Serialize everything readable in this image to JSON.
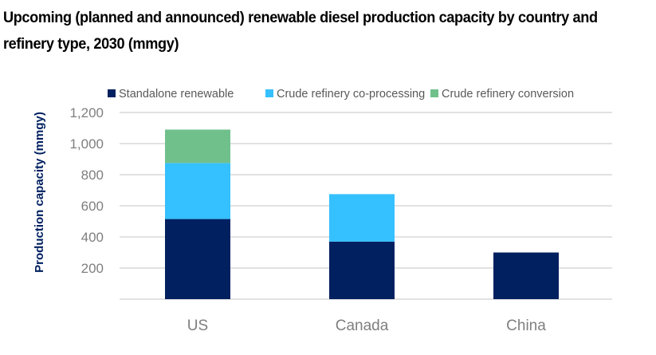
{
  "chart_data": {
    "type": "bar",
    "stacked": true,
    "title": "Upcoming (planned and announced) renewable diesel production capacity by country and refinery type, 2030 (mmgy)",
    "xlabel": "",
    "ylabel": "Production capacity (mmgy)",
    "categories": [
      "US",
      "Canada",
      "China"
    ],
    "series": [
      {
        "name": "Standalone renewable",
        "color": "#002060",
        "values": [
          515,
          370,
          300
        ]
      },
      {
        "name": "Crude refinery co-processing",
        "color": "#35C0FF",
        "values": [
          360,
          305,
          0
        ]
      },
      {
        "name": "Crude refinery conversion",
        "color": "#70C08C",
        "values": [
          215,
          0,
          0
        ]
      }
    ],
    "ylim": [
      0,
      1200
    ],
    "yticks": [
      0,
      200,
      400,
      600,
      800,
      1000,
      1200
    ],
    "ytick_labels": [
      "",
      "200",
      "400",
      "600",
      "800",
      "1,000",
      "1,200"
    ],
    "grid": true,
    "legend_position": "top"
  }
}
